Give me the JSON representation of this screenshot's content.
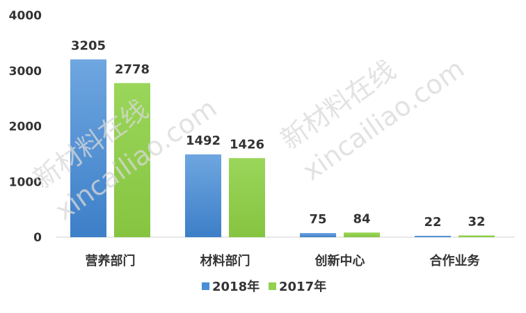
{
  "chart_data": {
    "type": "bar",
    "categories": [
      "营养部门",
      "材料部门",
      "创新中心",
      "合作业务"
    ],
    "series": [
      {
        "name": "2018年",
        "values": [
          3205,
          1492,
          75,
          22
        ],
        "color": "#4a8fd6"
      },
      {
        "name": "2017年",
        "values": [
          2778,
          1426,
          84,
          32
        ],
        "color": "#92d050"
      }
    ],
    "ylim": [
      0,
      4000
    ],
    "yticks": [
      0,
      1000,
      2000,
      3000,
      4000
    ],
    "grid": false,
    "legend_position": "bottom"
  },
  "watermark": {
    "cn": "新材料在线",
    "en": "xincailiao.com"
  }
}
